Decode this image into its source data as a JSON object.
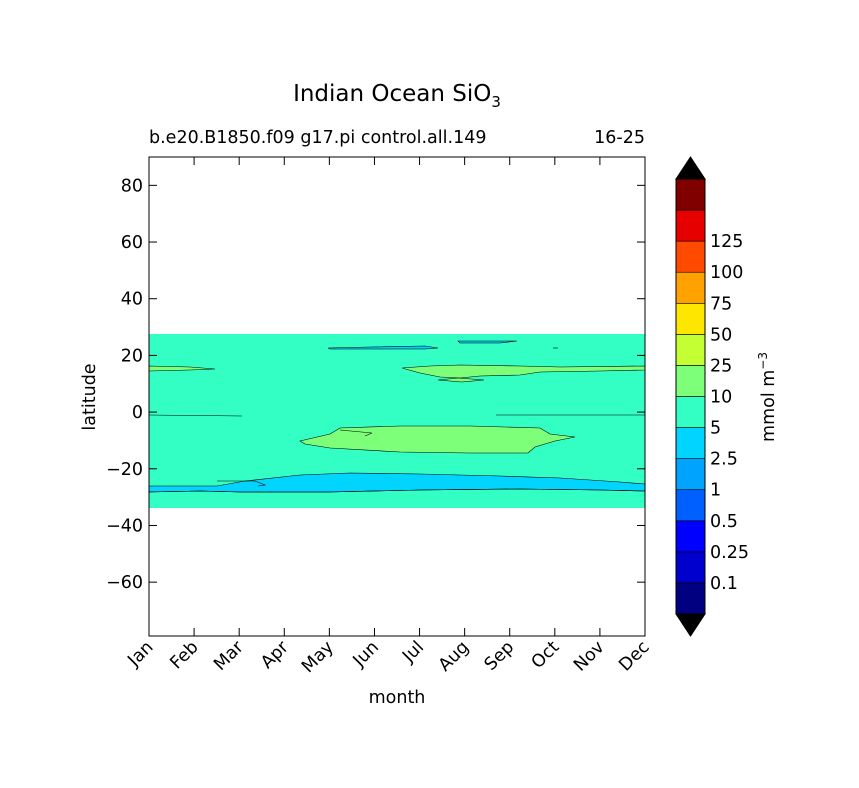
{
  "chart_data": {
    "type": "contour",
    "title": "Indian Ocean SiO",
    "title_subscript": "3",
    "subtitle_left": "b.e20.B1850.f09 g17.pi control.all.149",
    "subtitle_right": "16-25",
    "xlabel": "month",
    "ylabel": "latitude",
    "x_ticks": [
      "Jan",
      "Feb",
      "Mar",
      "Apr",
      "May",
      "Jun",
      "Jul",
      "Aug",
      "Sep",
      "Oct",
      "Nov",
      "Dec"
    ],
    "ylim": [
      -79,
      90
    ],
    "y_ticks": [
      80,
      60,
      40,
      20,
      0,
      -20,
      -40,
      -60
    ],
    "y_tick_labels": [
      "80",
      "60",
      "40",
      "20",
      "0",
      "−20",
      "−40",
      "−60"
    ],
    "data_lat_range": [
      -34,
      27.5
    ],
    "colorbar": {
      "label": "mmol m",
      "label_superscript": "−3",
      "levels": [
        "0.1",
        "0.25",
        "0.5",
        "1",
        "2.5",
        "5",
        "10",
        "25",
        "50",
        "75",
        "100",
        "125"
      ],
      "colors": [
        "#000080",
        "#0000cd",
        "#0000ff",
        "#0060ff",
        "#00a4ff",
        "#00d4ff",
        "#33ffc4",
        "#7dff7a",
        "#c4ff33",
        "#ffe600",
        "#ffa200",
        "#ff4a00",
        "#e60000",
        "#800000"
      ],
      "extend_colors": [
        "#000000",
        "#000000"
      ]
    },
    "regions": [
      {
        "name": "band 2.5-5",
        "color": "#33ffc4",
        "lat": [
          -34,
          27.5
        ]
      },
      {
        "name": "band 1-2.5 south",
        "color": "#00d4ff",
        "lat": [
          -29,
          -22
        ]
      },
      {
        "name": "patch 5-10 central",
        "color": "#7dff7a",
        "lat": [
          -14,
          -5
        ]
      },
      {
        "name": "patch 5-10 north",
        "color": "#7dff7a",
        "lat": [
          10,
          16
        ]
      },
      {
        "name": "patch 5-10 west",
        "color": "#7dff7a",
        "lat": [
          14,
          16
        ]
      },
      {
        "name": "patch 1-2.5 north",
        "color": "#00d4ff",
        "lat": [
          22,
          24
        ]
      }
    ]
  }
}
